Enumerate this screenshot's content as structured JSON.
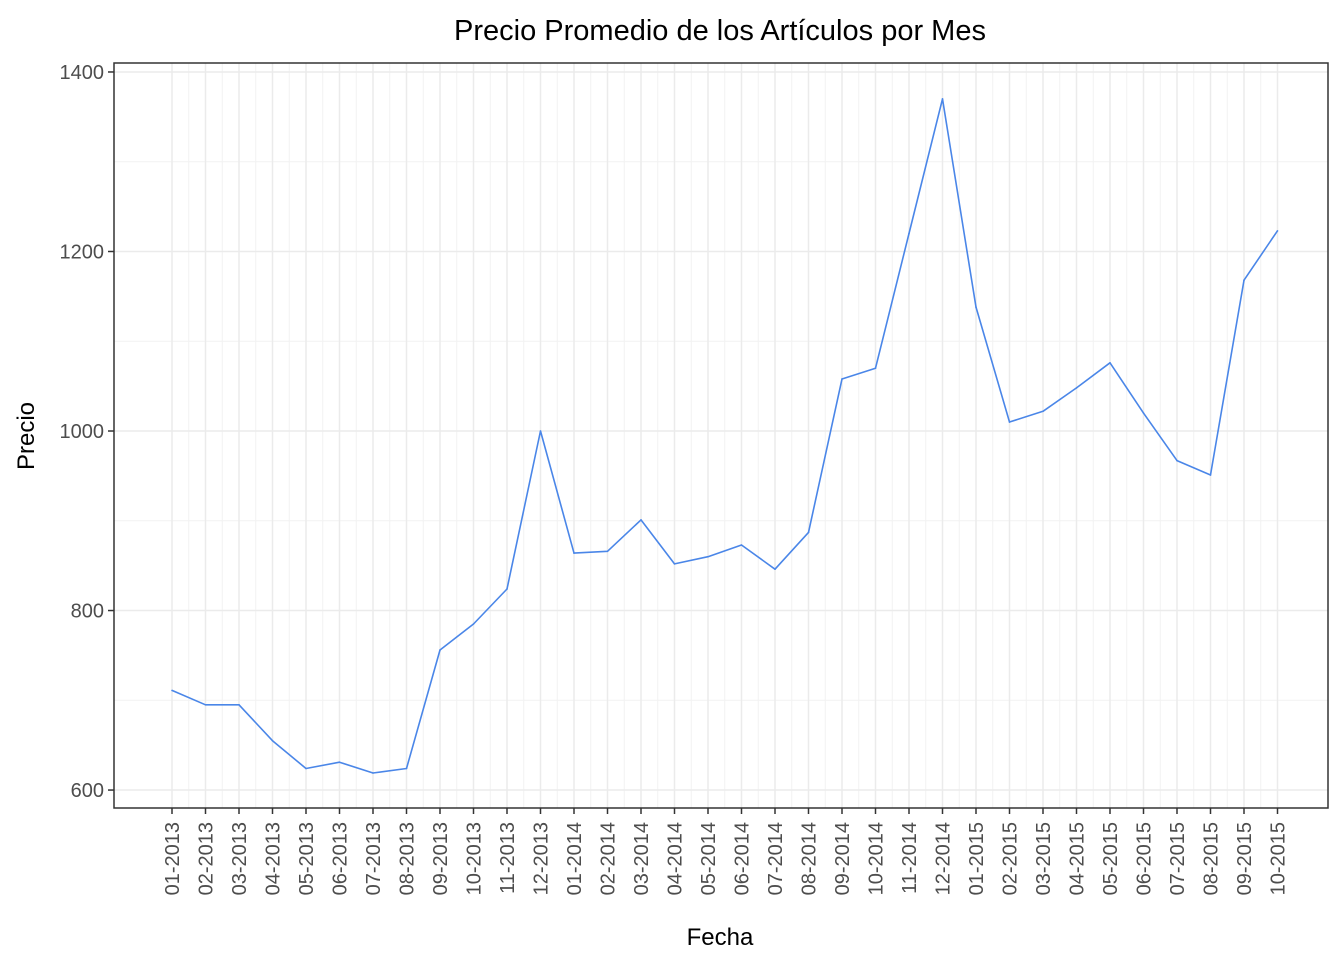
{
  "chart_data": {
    "type": "line",
    "title": "Precio Promedio de los Artículos por Mes",
    "xlabel": "Fecha",
    "ylabel": "Precio",
    "ylim": [
      580,
      1410
    ],
    "yticks": [
      600,
      800,
      1000,
      1200,
      1400
    ],
    "yticks_labels": [
      "600",
      "800",
      "1000",
      "1200",
      "1400"
    ],
    "grid": true,
    "legend": "none",
    "line_color": "#4a86e8",
    "categories": [
      "01-2013",
      "02-2013",
      "03-2013",
      "04-2013",
      "05-2013",
      "06-2013",
      "07-2013",
      "08-2013",
      "09-2013",
      "10-2013",
      "11-2013",
      "12-2013",
      "01-2014",
      "02-2014",
      "03-2014",
      "04-2014",
      "05-2014",
      "06-2014",
      "07-2014",
      "08-2014",
      "09-2014",
      "10-2014",
      "11-2014",
      "12-2014",
      "01-2015",
      "02-2015",
      "03-2015",
      "04-2015",
      "05-2015",
      "06-2015",
      "07-2015",
      "08-2015",
      "09-2015",
      "10-2015"
    ],
    "series": [
      {
        "values": [
          711,
          695,
          695,
          655,
          624,
          631,
          619,
          624,
          756,
          785,
          824,
          1000,
          864,
          866,
          901,
          852,
          860,
          873,
          846,
          887,
          1058,
          1070,
          1220,
          1370,
          1138,
          1010,
          1022,
          1048,
          1076,
          1020,
          967,
          951,
          1168,
          1223
        ]
      }
    ]
  }
}
